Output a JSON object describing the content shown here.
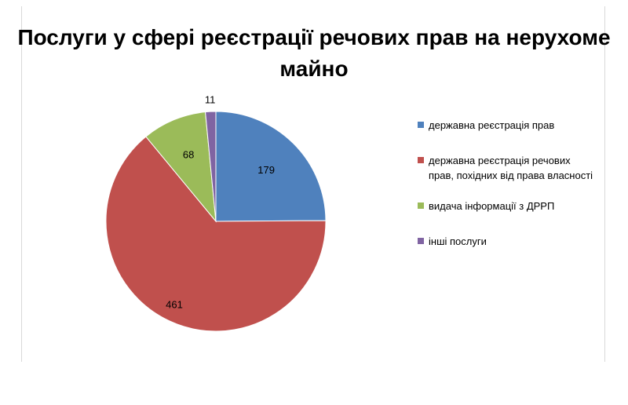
{
  "chart_data": {
    "type": "pie",
    "title": "Послуги у сфері реєстрації речових прав на нерухоме майно",
    "categories": [
      "державна реєстрація прав",
      "державна реєстрація речових прав, похідних від права власності",
      "видача інформації з ДРРП",
      "інші послуги"
    ],
    "values": [
      179,
      461,
      68,
      11
    ],
    "colors": [
      "#4f81bd",
      "#c0504d",
      "#9bbb59",
      "#8064a2"
    ],
    "legend_position": "right"
  }
}
